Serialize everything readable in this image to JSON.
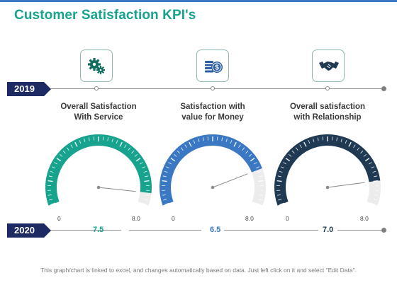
{
  "title": "Customer Satisfaction KPI's",
  "timeline": {
    "year_top": "2019",
    "year_bottom": "2020"
  },
  "kpis": [
    {
      "label_line1": "Overall Satisfaction",
      "label_line2": "With Service",
      "icon": "gears-icon",
      "value_text": "7.5",
      "axis_min": "0",
      "axis_max": "8.0",
      "color": "#17a38e"
    },
    {
      "label_line1": "Satisfaction with",
      "label_line2": "value for Money",
      "icon": "money-icon",
      "value_text": "6.5",
      "axis_min": "0",
      "axis_max": "8.0",
      "color": "#3b78c4"
    },
    {
      "label_line1": "Overall satisfaction",
      "label_line2": "with Relationship",
      "icon": "handshake-icon",
      "value_text": "7.0",
      "axis_min": "0",
      "axis_max": "8.0",
      "color": "#1f3a52"
    }
  ],
  "chart_data": {
    "type": "gauge",
    "series": [
      {
        "name": "Overall Satisfaction With Service",
        "value": 7.5,
        "min": 0,
        "max": 8.0,
        "color": "#17a38e"
      },
      {
        "name": "Satisfaction with value for Money",
        "value": 6.5,
        "min": 0,
        "max": 8.0,
        "color": "#3b78c4"
      },
      {
        "name": "Overall satisfaction with Relationship",
        "value": 7.0,
        "min": 0,
        "max": 8.0,
        "color": "#1f3a52"
      }
    ]
  },
  "footer": "This graph/chart is linked to excel, and changes automatically based on data. Just left click on it and select \"Edit Data\"."
}
